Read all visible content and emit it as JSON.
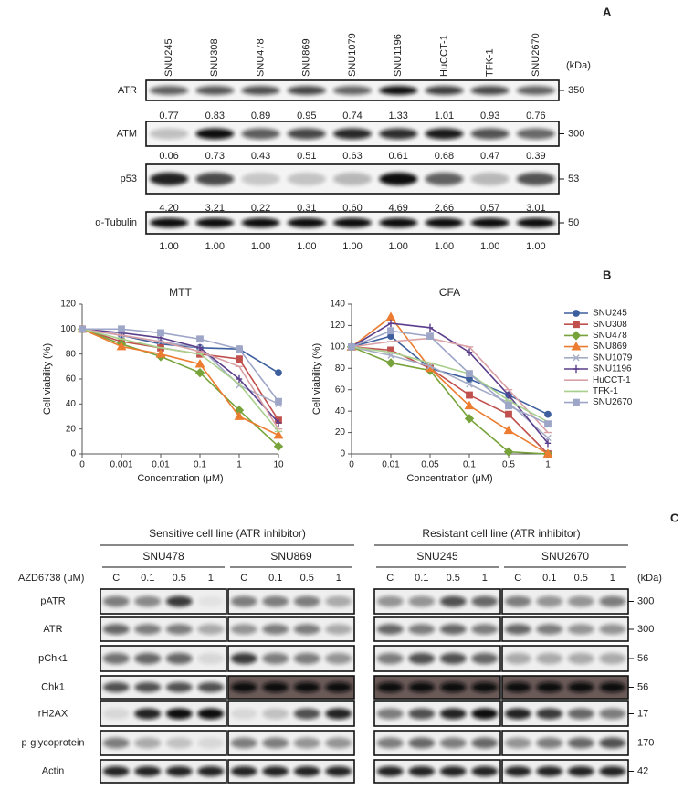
{
  "panel_a": {
    "label": "A",
    "cell_lines": [
      "SNU245",
      "SNU308",
      "SNU478",
      "SNU869",
      "SNU1079",
      "SNU1196",
      "HuCCT-1",
      "TFK-1",
      "SNU2670"
    ],
    "unit": "(kDa)",
    "rows": [
      {
        "protein": "ATR",
        "kda": 350,
        "values": [
          "0.77",
          "0.83",
          "0.89",
          "0.95",
          "0.74",
          "1.33",
          "1.01",
          "0.93",
          "0.76"
        ]
      },
      {
        "protein": "ATM",
        "kda": 300,
        "values": [
          "0.06",
          "0.73",
          "0.43",
          "0.51",
          "0.63",
          "0.61",
          "0.68",
          "0.47",
          "0.39"
        ]
      },
      {
        "protein": "p53",
        "kda": 53,
        "values": [
          "4.20",
          "3.21",
          "0.22",
          "0.31",
          "0.60",
          "4.69",
          "2.66",
          "0.57",
          "3.01"
        ]
      },
      {
        "protein": "α-Tubulin",
        "kda": 50,
        "values": [
          "1.00",
          "1.00",
          "1.00",
          "1.00",
          "1.00",
          "1.00",
          "1.00",
          "1.00",
          "1.00"
        ]
      }
    ]
  },
  "panel_b": {
    "label": "B"
  },
  "chart_data": [
    {
      "type": "line",
      "title": "MTT",
      "x_label": "Concentration (μM)",
      "y_label": "Cell viability (%)",
      "categories": [
        "0",
        "0.001",
        "0.01",
        "0.1",
        "1",
        "10"
      ],
      "ylim": [
        0,
        120
      ],
      "yticks": [
        0,
        20,
        40,
        60,
        80,
        100,
        120
      ],
      "series": [
        {
          "name": "SNU245",
          "color": "#3d5f9e",
          "marker": "circle",
          "values": [
            100,
            95,
            88,
            85,
            84,
            65
          ]
        },
        {
          "name": "SNU308",
          "color": "#c0504d",
          "marker": "square",
          "values": [
            100,
            90,
            85,
            80,
            76,
            27
          ]
        },
        {
          "name": "SNU478",
          "color": "#77a33a",
          "marker": "diamond",
          "values": [
            100,
            88,
            78,
            65,
            35,
            6
          ]
        },
        {
          "name": "SNU869",
          "color": "#ec7c30",
          "marker": "triangle",
          "values": [
            100,
            86,
            80,
            72,
            30,
            15
          ]
        },
        {
          "name": "SNU1079",
          "color": "#a5acc6",
          "marker": "cross",
          "values": [
            100,
            95,
            90,
            85,
            55,
            40
          ]
        },
        {
          "name": "SNU1196",
          "color": "#5b3f8c",
          "marker": "bar",
          "values": [
            100,
            97,
            93,
            85,
            60,
            25
          ]
        },
        {
          "name": "HuCCT-1",
          "color": "#d9a0a5",
          "marker": "dash",
          "values": [
            100,
            95,
            90,
            82,
            70,
            20
          ]
        },
        {
          "name": "TFK-1",
          "color": "#a9d08e",
          "marker": "dash",
          "values": [
            100,
            92,
            85,
            80,
            56,
            18
          ]
        },
        {
          "name": "SNU2670",
          "color": "#9ea6c8",
          "marker": "square",
          "values": [
            100,
            100,
            97,
            92,
            84,
            42
          ]
        }
      ]
    },
    {
      "type": "line",
      "title": "CFA",
      "x_label": "Concentration (μM)",
      "y_label": "Cell viability (%)",
      "categories": [
        "0",
        "0.01",
        "0.05",
        "0.1",
        "0.5",
        "1"
      ],
      "ylim": [
        0,
        140
      ],
      "yticks": [
        0,
        20,
        40,
        60,
        80,
        100,
        120,
        140
      ],
      "legend": "right",
      "series": [
        {
          "name": "SNU245",
          "color": "#3d5f9e",
          "marker": "circle",
          "values": [
            100,
            110,
            80,
            70,
            55,
            37
          ]
        },
        {
          "name": "SNU308",
          "color": "#c0504d",
          "marker": "square",
          "values": [
            100,
            97,
            80,
            55,
            37,
            0
          ]
        },
        {
          "name": "SNU478",
          "color": "#77a33a",
          "marker": "diamond",
          "values": [
            100,
            85,
            78,
            33,
            2,
            0
          ]
        },
        {
          "name": "SNU869",
          "color": "#ec7c30",
          "marker": "triangle",
          "values": [
            100,
            128,
            80,
            45,
            22,
            0
          ]
        },
        {
          "name": "SNU1079",
          "color": "#a5acc6",
          "marker": "cross",
          "values": [
            100,
            92,
            82,
            65,
            48,
            15
          ]
        },
        {
          "name": "SNU1196",
          "color": "#5b3f8c",
          "marker": "bar",
          "values": [
            100,
            122,
            118,
            95,
            55,
            10
          ]
        },
        {
          "name": "HuCCT-1",
          "color": "#d9a0a5",
          "marker": "dash",
          "values": [
            100,
            105,
            108,
            100,
            60,
            20
          ]
        },
        {
          "name": "TFK-1",
          "color": "#a9d08e",
          "marker": "dash",
          "values": [
            100,
            95,
            85,
            75,
            50,
            30
          ]
        },
        {
          "name": "SNU2670",
          "color": "#9ea6c8",
          "marker": "square",
          "values": [
            100,
            115,
            110,
            75,
            45,
            28
          ]
        }
      ]
    }
  ],
  "panel_c": {
    "label": "C",
    "groups": [
      "Sensitive cell line (ATR inhibitor)",
      "Resistant cell line (ATR inhibitor)"
    ],
    "cell_lines": [
      "SNU478",
      "SNU869",
      "SNU245",
      "SNU2670"
    ],
    "treatment": "AZD6738 (μM)",
    "doses": [
      "C",
      "0.1",
      "0.5",
      "1"
    ],
    "unit": "(kDa)",
    "rows": [
      {
        "protein": "pATR",
        "kda": 300
      },
      {
        "protein": "ATR",
        "kda": 300
      },
      {
        "protein": "pChk1",
        "kda": 56
      },
      {
        "protein": "Chk1",
        "kda": 56
      },
      {
        "protein": "rH2AX",
        "kda": 17
      },
      {
        "protein": "p-glycoprotein",
        "kda": 170
      },
      {
        "protein": "Actin",
        "kda": 42
      }
    ]
  }
}
